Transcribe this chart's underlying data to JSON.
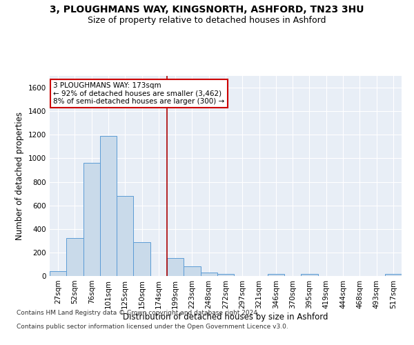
{
  "title": "3, PLOUGHMANS WAY, KINGSNORTH, ASHFORD, TN23 3HU",
  "subtitle": "Size of property relative to detached houses in Ashford",
  "xlabel": "Distribution of detached houses by size in Ashford",
  "ylabel": "Number of detached properties",
  "categories": [
    "27sqm",
    "52sqm",
    "76sqm",
    "101sqm",
    "125sqm",
    "150sqm",
    "174sqm",
    "199sqm",
    "223sqm",
    "248sqm",
    "272sqm",
    "297sqm",
    "321sqm",
    "346sqm",
    "370sqm",
    "395sqm",
    "419sqm",
    "444sqm",
    "468sqm",
    "493sqm",
    "517sqm"
  ],
  "values": [
    40,
    320,
    960,
    1190,
    680,
    290,
    0,
    155,
    80,
    30,
    20,
    0,
    0,
    20,
    0,
    20,
    0,
    0,
    0,
    0,
    20
  ],
  "bar_color": "#c9daea",
  "bar_edge_color": "#5b9bd5",
  "bar_width": 1.0,
  "vline_x": 6.5,
  "vline_color": "#aa0000",
  "annotation_text": "3 PLOUGHMANS WAY: 173sqm\n← 92% of detached houses are smaller (3,462)\n8% of semi-detached houses are larger (300) →",
  "annotation_box_color": "#ffffff",
  "annotation_box_edge": "#cc0000",
  "ylim": [
    0,
    1700
  ],
  "yticks": [
    0,
    200,
    400,
    600,
    800,
    1000,
    1200,
    1400,
    1600
  ],
  "bg_color": "#e8eef6",
  "grid_color": "#ffffff",
  "footer_line1": "Contains HM Land Registry data © Crown copyright and database right 2024.",
  "footer_line2": "Contains public sector information licensed under the Open Government Licence v3.0.",
  "title_fontsize": 10,
  "subtitle_fontsize": 9,
  "xlabel_fontsize": 8.5,
  "ylabel_fontsize": 8.5,
  "tick_fontsize": 7.5,
  "footer_fontsize": 6.5
}
